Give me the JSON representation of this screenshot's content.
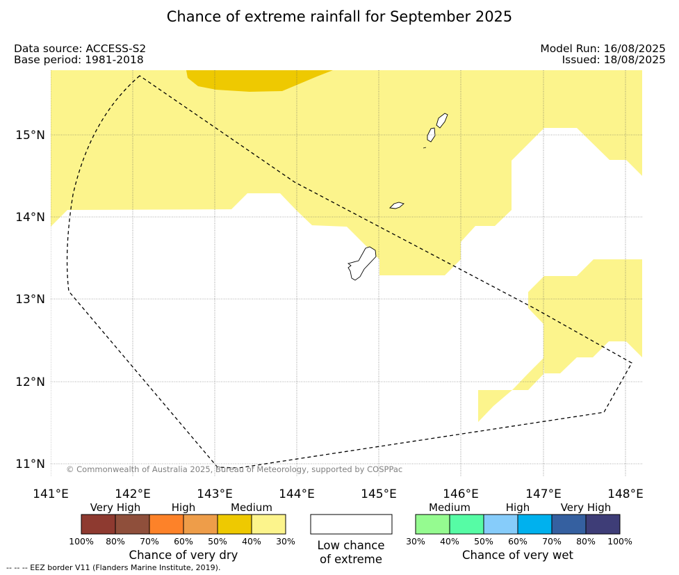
{
  "title": "Chance of extreme rainfall for September 2025",
  "meta": {
    "data_source": "Data source: ACCESS-S2",
    "base_period": "Base period: 1981-2018",
    "model_run": "Model Run: 16/08/2025",
    "issued": "Issued: 18/08/2025"
  },
  "map": {
    "lat_labels": [
      "15°N",
      "14°N",
      "13°N",
      "12°N",
      "11°N"
    ],
    "lon_labels": [
      "141°E",
      "142°E",
      "143°E",
      "144°E",
      "145°E",
      "146°E",
      "147°E",
      "148°E"
    ],
    "copyright": "© Commonwealth of Australia 2025, Bureau of Meteorology, supported by COSPPac",
    "colors": {
      "medium_dry": "#fcf48c",
      "high_dry": "#eec901",
      "border": "#000000",
      "grid": "#555555"
    }
  },
  "legend": {
    "dry": {
      "labels": [
        "Very High",
        "High",
        "Medium"
      ],
      "colors": [
        "#8e3a30",
        "#8f4f3b",
        "#fd8229",
        "#ee9d49",
        "#eec901",
        "#fcf48c"
      ],
      "ticks": [
        "100%",
        "80%",
        "70%",
        "60%",
        "50%",
        "40%",
        "30%"
      ],
      "title": "Chance of very dry"
    },
    "low": {
      "line1": "Low chance",
      "line2": "of extreme",
      "color": "#ffffff"
    },
    "wet": {
      "labels": [
        "Medium",
        "High",
        "Very High"
      ],
      "colors": [
        "#95fb90",
        "#56fca5",
        "#86ccfa",
        "#00b1ee",
        "#3560a0",
        "#3e3d77"
      ],
      "ticks": [
        "30%",
        "40%",
        "50%",
        "60%",
        "70%",
        "80%",
        "100%"
      ],
      "title": "Chance of very wet"
    }
  },
  "eez_note": "--  --  -- EEZ border V11 (Flanders Marine Institute, 2019)."
}
